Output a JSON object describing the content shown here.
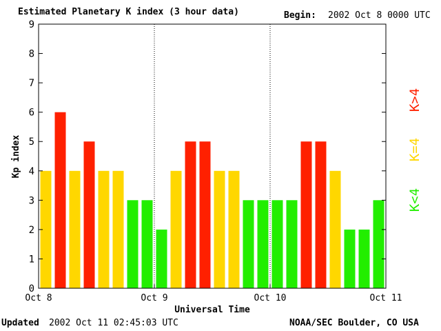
{
  "header": {
    "title": "Estimated Planetary K index (3 hour data)",
    "begin_label": "Begin:",
    "begin_value": "2002 Oct 8 0000 UTC"
  },
  "footer": {
    "updated_label": "Updated",
    "updated_value": "2002 Oct 11 02:45:03 UTC",
    "credit": "NOAA/SEC Boulder, CO USA"
  },
  "colors": {
    "red": "#ff2000",
    "yellow": "#ffd700",
    "green": "#22ee00"
  },
  "chart_data": {
    "type": "bar",
    "ylabel": "Kp index",
    "xlabel": "Universal Time",
    "ylim": [
      0,
      9
    ],
    "yticks": [
      0,
      1,
      2,
      3,
      4,
      5,
      6,
      7,
      8,
      9
    ],
    "xtick_labels": [
      "Oct 8",
      "Oct 9",
      "Oct 10",
      "Oct 11"
    ],
    "day_separators": [
      1,
      2
    ],
    "bars_per_day": 8,
    "values": [
      4,
      6,
      4,
      5,
      4,
      4,
      3,
      3,
      2,
      4,
      5,
      5,
      4,
      4,
      3,
      3,
      3,
      3,
      5,
      5,
      4,
      2,
      2,
      3
    ],
    "colors": [
      "yellow",
      "red",
      "yellow",
      "red",
      "yellow",
      "yellow",
      "green",
      "green",
      "green",
      "yellow",
      "red",
      "red",
      "yellow",
      "yellow",
      "green",
      "green",
      "green",
      "green",
      "red",
      "red",
      "yellow",
      "green",
      "green",
      "green"
    ],
    "legend": [
      {
        "label": "K>4",
        "color": "red"
      },
      {
        "label": "K=4",
        "color": "yellow"
      },
      {
        "label": "K<4",
        "color": "green"
      }
    ],
    "legend_position": "right"
  }
}
